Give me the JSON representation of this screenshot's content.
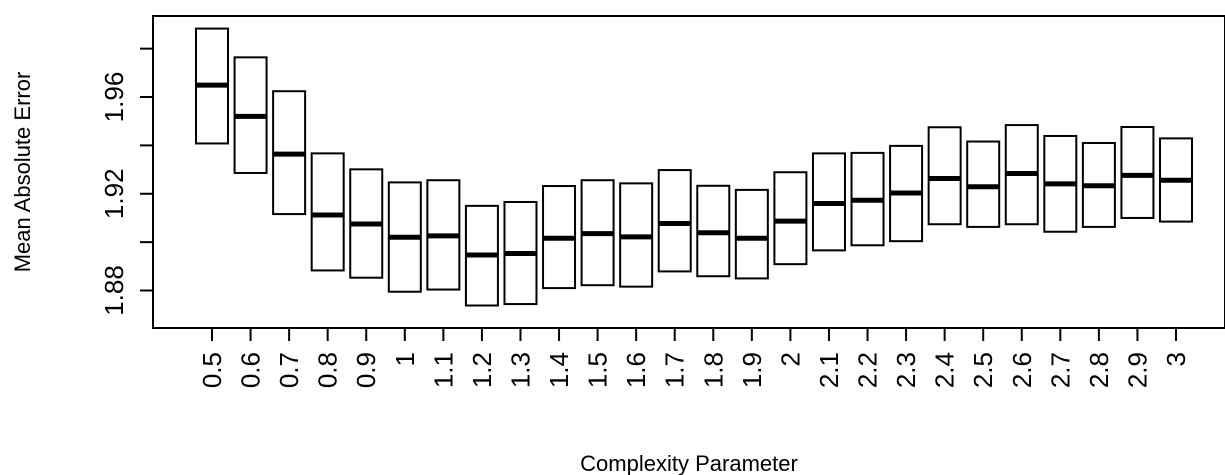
{
  "chart_data": {
    "type": "box",
    "xlabel": "Complexity Parameter",
    "ylabel": "Mean Absolute Error",
    "yticks": [
      "1.88",
      "1.92",
      "1.96"
    ],
    "ylim": [
      1.8645,
      1.9935
    ],
    "categories": [
      "0.5",
      "0.6",
      "0.7",
      "0.8",
      "0.9",
      "1",
      "1.1",
      "1.2",
      "1.3",
      "1.4",
      "1.5",
      "1.6",
      "1.7",
      "1.8",
      "1.9",
      "2",
      "2.1",
      "2.2",
      "2.3",
      "2.4",
      "2.5",
      "2.6",
      "2.7",
      "2.8",
      "2.9",
      "3"
    ],
    "boxes": [
      {
        "low": 1.9408,
        "mid": 1.9649,
        "high": 1.9883
      },
      {
        "low": 1.9286,
        "mid": 1.952,
        "high": 1.9764
      },
      {
        "low": 1.9116,
        "mid": 1.9364,
        "high": 1.9624
      },
      {
        "low": 1.8883,
        "mid": 1.9112,
        "high": 1.9367
      },
      {
        "low": 1.8853,
        "mid": 1.9075,
        "high": 1.9301
      },
      {
        "low": 1.8795,
        "mid": 1.902,
        "high": 1.9247
      },
      {
        "low": 1.8804,
        "mid": 1.9026,
        "high": 1.9256
      },
      {
        "low": 1.8738,
        "mid": 1.8947,
        "high": 1.915
      },
      {
        "low": 1.8744,
        "mid": 1.8953,
        "high": 1.9166
      },
      {
        "low": 1.881,
        "mid": 1.9016,
        "high": 1.9232
      },
      {
        "low": 1.8822,
        "mid": 1.9035,
        "high": 1.9256
      },
      {
        "low": 1.8816,
        "mid": 1.9022,
        "high": 1.9243
      },
      {
        "low": 1.8879,
        "mid": 1.9077,
        "high": 1.9298
      },
      {
        "low": 1.8859,
        "mid": 1.9039,
        "high": 1.9233
      },
      {
        "low": 1.885,
        "mid": 1.9016,
        "high": 1.9216
      },
      {
        "low": 1.8909,
        "mid": 1.9087,
        "high": 1.9289
      },
      {
        "low": 1.8966,
        "mid": 1.916,
        "high": 1.9367
      },
      {
        "low": 1.8987,
        "mid": 1.9173,
        "high": 1.9369
      },
      {
        "low": 1.9004,
        "mid": 1.9203,
        "high": 1.9398
      },
      {
        "low": 1.9074,
        "mid": 1.9263,
        "high": 1.9475
      },
      {
        "low": 1.9063,
        "mid": 1.9229,
        "high": 1.9416
      },
      {
        "low": 1.9074,
        "mid": 1.9284,
        "high": 1.9484
      },
      {
        "low": 1.9043,
        "mid": 1.9241,
        "high": 1.9439
      },
      {
        "low": 1.9063,
        "mid": 1.9233,
        "high": 1.941
      },
      {
        "low": 1.91,
        "mid": 1.9276,
        "high": 1.9476
      },
      {
        "low": 1.9085,
        "mid": 1.9256,
        "high": 1.9429
      }
    ]
  }
}
